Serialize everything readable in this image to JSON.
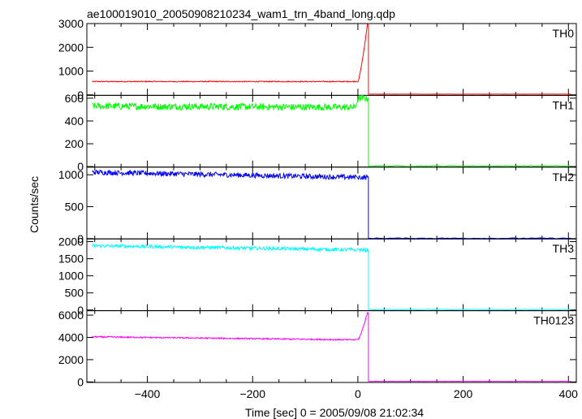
{
  "chart_data": {
    "type": "line",
    "title": "ae100019010_20050908210234_wam1_trn_4band_long.qdp",
    "xlabel": "Time [sec] 0 = 2005/09/08 21:02:34",
    "ylabel": "Counts/sec",
    "xlim": [
      -515,
      415
    ],
    "xticks": [
      -400,
      -200,
      0,
      200,
      400
    ],
    "x_tick_labels": [
      "−400",
      "−200",
      "0",
      "200",
      "400"
    ],
    "shared_x_key": {
      "pre_end": -5,
      "rise_start": 0,
      "drop_x": 20,
      "end_x": 405
    },
    "panels": [
      {
        "name": "TH0",
        "color": "#ff0000",
        "ylim": [
          -20,
          3000
        ],
        "yticks": [
          0,
          1000,
          2000,
          3000
        ],
        "profile": {
          "pre_start": 560,
          "pre_end": 560,
          "noise": 20,
          "peak": 2950,
          "after": 30
        },
        "key_points": [
          {
            "x": -505,
            "y": 560
          },
          {
            "x": -5,
            "y": 560
          },
          {
            "x": 0,
            "y": 900
          },
          {
            "x": 10,
            "y": 2200
          },
          {
            "x": 18,
            "y": 2950
          },
          {
            "x": 20,
            "y": 30
          },
          {
            "x": 405,
            "y": 30
          }
        ]
      },
      {
        "name": "TH1",
        "color": "#00ff00",
        "ylim": [
          -5,
          625
        ],
        "yticks": [
          0,
          200,
          400,
          600
        ],
        "profile": {
          "pre_start": 530,
          "pre_end": 520,
          "noise": 30,
          "peak": 600,
          "after": 5
        },
        "key_points": [
          {
            "x": -505,
            "y": 530
          },
          {
            "x": -5,
            "y": 520
          },
          {
            "x": 15,
            "y": 600
          },
          {
            "x": 20,
            "y": 5
          },
          {
            "x": 405,
            "y": 5
          }
        ]
      },
      {
        "name": "TH2",
        "color": "#0000ff",
        "ylim": [
          -5,
          1120
        ],
        "yticks": [
          0,
          500,
          1000
        ],
        "profile": {
          "pre_start": 1040,
          "pre_end": 960,
          "noise": 40,
          "peak": 960,
          "after": 5
        },
        "key_points": [
          {
            "x": -505,
            "y": 1040
          },
          {
            "x": -5,
            "y": 960
          },
          {
            "x": 20,
            "y": 960
          },
          {
            "x": 20,
            "y": 5
          },
          {
            "x": 405,
            "y": 5
          }
        ]
      },
      {
        "name": "TH3",
        "color": "#00ffff",
        "ylim": [
          -20,
          2080
        ],
        "yticks": [
          0,
          500,
          1000,
          1500,
          2000
        ],
        "profile": {
          "pre_start": 1880,
          "pre_end": 1760,
          "noise": 50,
          "peak": 1760,
          "after": 15
        },
        "key_points": [
          {
            "x": -505,
            "y": 1880
          },
          {
            "x": -5,
            "y": 1760
          },
          {
            "x": 20,
            "y": 1760
          },
          {
            "x": 20,
            "y": 15
          },
          {
            "x": 405,
            "y": 15
          }
        ]
      },
      {
        "name": "TH0123",
        "color": "#ff00ff",
        "ylim": [
          -50,
          6400
        ],
        "yticks": [
          0,
          2000,
          4000,
          6000
        ],
        "profile": {
          "pre_start": 4050,
          "pre_end": 3780,
          "noise": 60,
          "peak": 6200,
          "after": 50
        },
        "key_points": [
          {
            "x": -505,
            "y": 4050
          },
          {
            "x": -5,
            "y": 3780
          },
          {
            "x": 0,
            "y": 4000
          },
          {
            "x": 10,
            "y": 5300
          },
          {
            "x": 18,
            "y": 6200
          },
          {
            "x": 20,
            "y": 50
          },
          {
            "x": 405,
            "y": 50
          }
        ]
      }
    ]
  }
}
